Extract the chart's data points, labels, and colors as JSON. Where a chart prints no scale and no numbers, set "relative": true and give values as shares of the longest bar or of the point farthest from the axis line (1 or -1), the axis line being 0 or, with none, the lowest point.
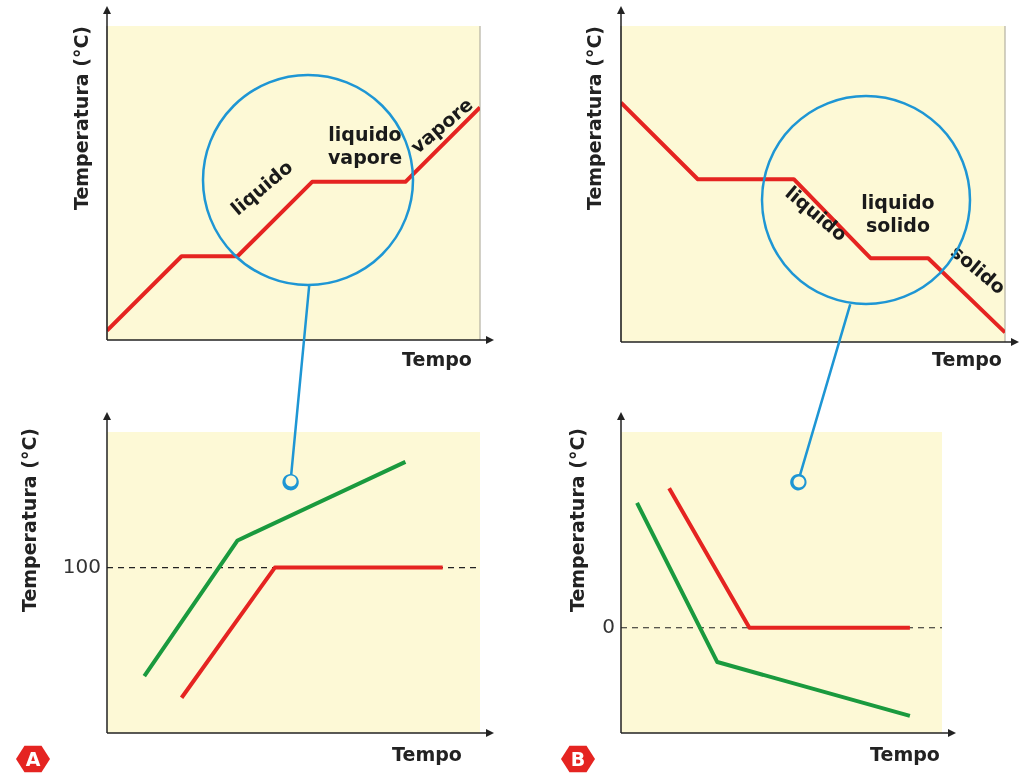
{
  "chart_data": [
    {
      "type": "line",
      "relative": true,
      "xlabel": "Tempo",
      "ylabel": "Temperatura (°C)",
      "categories": [
        null,
        null,
        null,
        null,
        null,
        null,
        null,
        null,
        null,
        null,
        null,
        null,
        null,
        null,
        null,
        null,
        null,
        null,
        null,
        null,
        null
      ],
      "grid": "x",
      "tick_labels": false,
      "marker": "none",
      "line_style": "solid",
      "series": [
        {
          "color": "#e52421",
          "values": [
            0.04,
            null,
            null,
            null,
            0.36,
            null,
            null,
            0.36,
            null,
            null,
            null,
            0.68,
            null,
            null,
            null,
            null,
            0.68,
            null,
            null,
            null,
            1
          ]
        }
      ],
      "annotations": [
        "liquido",
        "liquido vapore",
        "vapore"
      ]
    },
    {
      "type": "line",
      "relative": true,
      "xlabel": "Tempo",
      "ylabel": "Temperatura (°C)",
      "categories": [
        null,
        null,
        null,
        null,
        null,
        null,
        null,
        null,
        null,
        null,
        null,
        null,
        null,
        null,
        null,
        null,
        null,
        null,
        null,
        null,
        null
      ],
      "grid": "x",
      "tick_labels": false,
      "marker": "none",
      "line_style": "solid",
      "series": [
        {
          "color": "#e52421",
          "values": [
            1,
            null,
            null,
            null,
            0.68,
            null,
            null,
            null,
            null,
            0.68,
            null,
            null,
            null,
            0.35,
            null,
            null,
            0.35,
            null,
            null,
            null,
            0.04
          ]
        }
      ],
      "annotations": [
        "liquido",
        "liquido solido",
        "solido"
      ]
    },
    {
      "type": "line",
      "relative": true,
      "xlabel": "Tempo",
      "ylabel": "Temperatura (°C)",
      "categories": [
        null,
        null,
        null,
        null,
        null,
        null,
        null,
        null,
        null,
        null,
        null,
        null,
        null,
        null,
        null,
        null,
        null,
        null,
        null,
        null,
        null
      ],
      "tick_labels": false,
      "marker": "none",
      "line_style": "solid",
      "series": [
        {
          "color": "#1a9a3e",
          "values": [
            null,
            null,
            0.21,
            null,
            null,
            null,
            null,
            0.71,
            null,
            null,
            null,
            null,
            null,
            null,
            null,
            null,
            1,
            null,
            null,
            null,
            null
          ]
        },
        {
          "color": "#e52421",
          "values": [
            null,
            null,
            null,
            null,
            0.13,
            null,
            null,
            null,
            null,
            0.61,
            null,
            null,
            null,
            null,
            null,
            null,
            null,
            null,
            0.61,
            null,
            null
          ]
        }
      ],
      "ref_lines": [
        {
          "axis": "y",
          "value": 0.61,
          "color": "#222222",
          "line_style": "dashed"
        }
      ],
      "annotations": [
        "100",
        "A"
      ]
    },
    {
      "type": "line",
      "relative": true,
      "xlabel": "Tempo",
      "ylabel": "Temperatura (°C)",
      "categories": [
        null,
        null,
        null,
        null,
        null,
        null,
        null,
        null,
        null,
        null,
        null,
        null,
        null,
        null,
        null,
        null,
        null,
        null,
        null,
        null,
        null
      ],
      "tick_labels": false,
      "marker": "none",
      "line_style": "solid",
      "series": [
        {
          "color": "#1a9a3e",
          "values": [
            null,
            0.94,
            null,
            null,
            null,
            null,
            0.29,
            null,
            null,
            null,
            null,
            null,
            null,
            null,
            null,
            null,
            null,
            null,
            0.07,
            null,
            null
          ]
        },
        {
          "color": "#e52421",
          "values": [
            null,
            null,
            null,
            1,
            null,
            null,
            null,
            null,
            0.43,
            null,
            null,
            null,
            null,
            null,
            null,
            null,
            null,
            null,
            0.43,
            null,
            null
          ]
        }
      ],
      "ref_lines": [
        {
          "axis": "y",
          "value": 0.43,
          "color": "#222222",
          "line_style": "dashed"
        }
      ],
      "annotations": [
        "0",
        "B"
      ]
    }
  ]
}
